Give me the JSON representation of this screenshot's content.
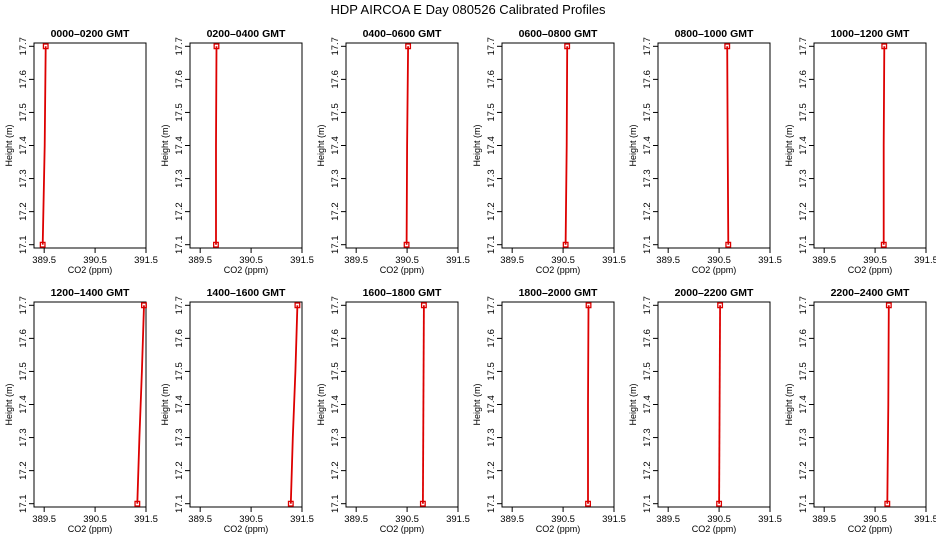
{
  "figure_title": "HDP  AIRCOA E  Day 080526  Calibrated Profiles",
  "colors": {
    "profile": "#dd0000",
    "axis": "#000000",
    "background": "#ffffff"
  },
  "chart_data": [
    {
      "type": "line",
      "title": "0000–0200 GMT",
      "xlabel": "CO2 (ppm)",
      "ylabel": "Height (m)",
      "xlim": [
        389.3,
        391.5
      ],
      "ylim": [
        17.09,
        17.71
      ],
      "xticks": [
        "389.5",
        "390.5",
        "391.5"
      ],
      "yticks": [
        "17.1",
        "17.2",
        "17.3",
        "17.4",
        "17.5",
        "17.6",
        "17.7"
      ],
      "profile": [
        [
          389.47,
          17.1
        ],
        [
          389.49,
          17.25
        ],
        [
          389.51,
          17.4
        ],
        [
          389.52,
          17.55
        ],
        [
          389.53,
          17.7
        ]
      ],
      "markers": [
        [
          389.47,
          17.1
        ],
        [
          389.53,
          17.7
        ]
      ]
    },
    {
      "type": "line",
      "title": "0200–0400 GMT",
      "xlabel": "CO2 (ppm)",
      "ylabel": "Height (m)",
      "xlim": [
        389.3,
        391.5
      ],
      "ylim": [
        17.09,
        17.71
      ],
      "xticks": [
        "389.5",
        "390.5",
        "391.5"
      ],
      "yticks": [
        "17.1",
        "17.2",
        "17.3",
        "17.4",
        "17.5",
        "17.6",
        "17.7"
      ],
      "profile": [
        [
          389.81,
          17.1
        ],
        [
          389.81,
          17.4
        ],
        [
          389.82,
          17.7
        ]
      ],
      "markers": [
        [
          389.81,
          17.1
        ],
        [
          389.82,
          17.7
        ]
      ]
    },
    {
      "type": "line",
      "title": "0400–0600 GMT",
      "xlabel": "CO2 (ppm)",
      "ylabel": "Height (m)",
      "xlim": [
        389.3,
        391.5
      ],
      "ylim": [
        17.09,
        17.71
      ],
      "xticks": [
        "389.5",
        "390.5",
        "391.5"
      ],
      "yticks": [
        "17.1",
        "17.2",
        "17.3",
        "17.4",
        "17.5",
        "17.6",
        "17.7"
      ],
      "profile": [
        [
          390.49,
          17.1
        ],
        [
          390.5,
          17.4
        ],
        [
          390.52,
          17.7
        ]
      ],
      "markers": [
        [
          390.49,
          17.1
        ],
        [
          390.52,
          17.7
        ]
      ]
    },
    {
      "type": "line",
      "title": "0600–0800 GMT",
      "xlabel": "CO2 (ppm)",
      "ylabel": "Height (m)",
      "xlim": [
        389.3,
        391.5
      ],
      "ylim": [
        17.09,
        17.71
      ],
      "xticks": [
        "389.5",
        "390.5",
        "391.5"
      ],
      "yticks": [
        "17.1",
        "17.2",
        "17.3",
        "17.4",
        "17.5",
        "17.6",
        "17.7"
      ],
      "profile": [
        [
          390.55,
          17.1
        ],
        [
          390.57,
          17.4
        ],
        [
          390.58,
          17.7
        ]
      ],
      "markers": [
        [
          390.55,
          17.1
        ],
        [
          390.58,
          17.7
        ]
      ]
    },
    {
      "type": "line",
      "title": "0800–1000 GMT",
      "xlabel": "CO2 (ppm)",
      "ylabel": "Height (m)",
      "xlim": [
        389.3,
        391.5
      ],
      "ylim": [
        17.09,
        17.71
      ],
      "xticks": [
        "389.5",
        "390.5",
        "391.5"
      ],
      "yticks": [
        "17.1",
        "17.2",
        "17.3",
        "17.4",
        "17.5",
        "17.6",
        "17.7"
      ],
      "profile": [
        [
          390.68,
          17.1
        ],
        [
          390.67,
          17.4
        ],
        [
          390.66,
          17.7
        ]
      ],
      "markers": [
        [
          390.68,
          17.1
        ],
        [
          390.66,
          17.7
        ]
      ]
    },
    {
      "type": "line",
      "title": "1000–1200 GMT",
      "xlabel": "CO2 (ppm)",
      "ylabel": "Height (m)",
      "xlim": [
        389.3,
        391.5
      ],
      "ylim": [
        17.09,
        17.71
      ],
      "xticks": [
        "389.5",
        "390.5",
        "391.5"
      ],
      "yticks": [
        "17.1",
        "17.2",
        "17.3",
        "17.4",
        "17.5",
        "17.6",
        "17.7"
      ],
      "profile": [
        [
          390.67,
          17.1
        ],
        [
          390.67,
          17.4
        ],
        [
          390.68,
          17.7
        ]
      ],
      "markers": [
        [
          390.67,
          17.1
        ],
        [
          390.68,
          17.7
        ]
      ]
    },
    {
      "type": "line",
      "title": "1200–1400 GMT",
      "xlabel": "CO2 (ppm)",
      "ylabel": "Height (m)",
      "xlim": [
        389.3,
        391.5
      ],
      "ylim": [
        17.09,
        17.71
      ],
      "xticks": [
        "389.5",
        "390.5",
        "391.5"
      ],
      "yticks": [
        "17.1",
        "17.2",
        "17.3",
        "17.4",
        "17.5",
        "17.6",
        "17.7"
      ],
      "profile": [
        [
          391.33,
          17.1
        ],
        [
          391.37,
          17.3
        ],
        [
          391.42,
          17.5
        ],
        [
          391.46,
          17.7
        ]
      ],
      "markers": [
        [
          391.33,
          17.1
        ],
        [
          391.46,
          17.7
        ]
      ]
    },
    {
      "type": "line",
      "title": "1400–1600 GMT",
      "xlabel": "CO2 (ppm)",
      "ylabel": "Height (m)",
      "xlim": [
        389.3,
        391.5
      ],
      "ylim": [
        17.09,
        17.71
      ],
      "xticks": [
        "389.5",
        "390.5",
        "391.5"
      ],
      "yticks": [
        "17.1",
        "17.2",
        "17.3",
        "17.4",
        "17.5",
        "17.6",
        "17.7"
      ],
      "profile": [
        [
          391.28,
          17.1
        ],
        [
          391.32,
          17.3
        ],
        [
          391.37,
          17.5
        ],
        [
          391.41,
          17.7
        ]
      ],
      "markers": [
        [
          391.28,
          17.1
        ],
        [
          391.41,
          17.7
        ]
      ]
    },
    {
      "type": "line",
      "title": "1600–1800 GMT",
      "xlabel": "CO2 (ppm)",
      "ylabel": "Height (m)",
      "xlim": [
        389.3,
        391.5
      ],
      "ylim": [
        17.09,
        17.71
      ],
      "xticks": [
        "389.5",
        "390.5",
        "391.5"
      ],
      "yticks": [
        "17.1",
        "17.2",
        "17.3",
        "17.4",
        "17.5",
        "17.6",
        "17.7"
      ],
      "profile": [
        [
          390.81,
          17.1
        ],
        [
          390.82,
          17.4
        ],
        [
          390.83,
          17.7
        ]
      ],
      "markers": [
        [
          390.81,
          17.1
        ],
        [
          390.83,
          17.7
        ]
      ]
    },
    {
      "type": "line",
      "title": "1800–2000 GMT",
      "xlabel": "CO2 (ppm)",
      "ylabel": "Height (m)",
      "xlim": [
        389.3,
        391.5
      ],
      "ylim": [
        17.09,
        17.71
      ],
      "xticks": [
        "389.5",
        "390.5",
        "391.5"
      ],
      "yticks": [
        "17.1",
        "17.2",
        "17.3",
        "17.4",
        "17.5",
        "17.6",
        "17.7"
      ],
      "profile": [
        [
          390.99,
          17.1
        ],
        [
          390.99,
          17.4
        ],
        [
          391.0,
          17.7
        ]
      ],
      "markers": [
        [
          390.99,
          17.1
        ],
        [
          391.0,
          17.7
        ]
      ]
    },
    {
      "type": "line",
      "title": "2000–2200 GMT",
      "xlabel": "CO2 (ppm)",
      "ylabel": "Height (m)",
      "xlim": [
        389.3,
        391.5
      ],
      "ylim": [
        17.09,
        17.71
      ],
      "xticks": [
        "389.5",
        "390.5",
        "391.5"
      ],
      "yticks": [
        "17.1",
        "17.2",
        "17.3",
        "17.4",
        "17.5",
        "17.6",
        "17.7"
      ],
      "profile": [
        [
          390.5,
          17.1
        ],
        [
          390.51,
          17.4
        ],
        [
          390.52,
          17.7
        ]
      ],
      "markers": [
        [
          390.5,
          17.1
        ],
        [
          390.52,
          17.7
        ]
      ]
    },
    {
      "type": "line",
      "title": "2200–2400 GMT",
      "xlabel": "CO2 (ppm)",
      "ylabel": "Height (m)",
      "xlim": [
        389.3,
        391.5
      ],
      "ylim": [
        17.09,
        17.71
      ],
      "xticks": [
        "389.5",
        "390.5",
        "391.5"
      ],
      "yticks": [
        "17.1",
        "17.2",
        "17.3",
        "17.4",
        "17.5",
        "17.6",
        "17.7"
      ],
      "profile": [
        [
          390.74,
          17.1
        ],
        [
          390.76,
          17.4
        ],
        [
          390.77,
          17.7
        ]
      ],
      "markers": [
        [
          390.74,
          17.1
        ],
        [
          390.77,
          17.7
        ]
      ]
    }
  ]
}
